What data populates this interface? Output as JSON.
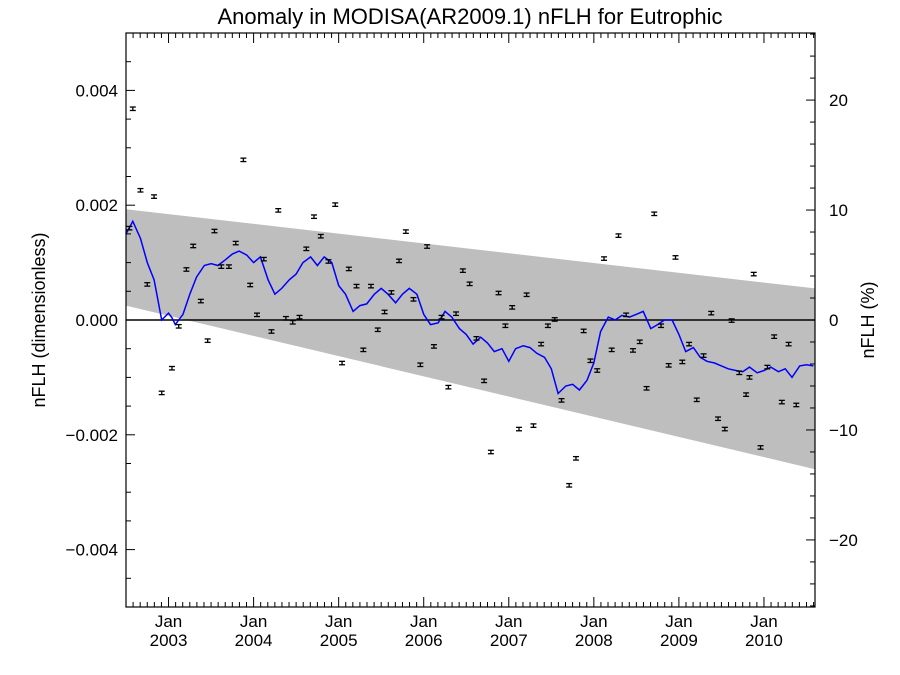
{
  "chart_data": {
    "type": "scatter",
    "title": "Anomaly in MODISA(AR2009.1) nFLH for Eutrophic",
    "ylabel": "nFLH (dimensionless)",
    "ylabel_right": "nFLH (%)",
    "xlim": [
      2002.5,
      2010.6
    ],
    "ylim": [
      -0.005,
      0.005
    ],
    "ylim_right": [
      -26.1,
      26.1
    ],
    "y_ticks": [
      {
        "value": 0.004,
        "label": "0.004"
      },
      {
        "value": 0.002,
        "label": "0.002"
      },
      {
        "value": 0.0,
        "label": "0.000"
      },
      {
        "value": -0.002,
        "label": "−0.002"
      },
      {
        "value": -0.004,
        "label": "−0.004"
      }
    ],
    "y_ticks_right": [
      {
        "value": 20,
        "label": "20"
      },
      {
        "value": 10,
        "label": "10"
      },
      {
        "value": 0,
        "label": "0"
      },
      {
        "value": -10,
        "label": "−10"
      },
      {
        "value": -20,
        "label": "−20"
      }
    ],
    "x_ticks": [
      {
        "value": 2003.0,
        "month": "Jan",
        "year": "2003"
      },
      {
        "value": 2004.0,
        "month": "Jan",
        "year": "2004"
      },
      {
        "value": 2005.0,
        "month": "Jan",
        "year": "2005"
      },
      {
        "value": 2006.0,
        "month": "Jan",
        "year": "2006"
      },
      {
        "value": 2007.0,
        "month": "Jan",
        "year": "2007"
      },
      {
        "value": 2008.0,
        "month": "Jan",
        "year": "2008"
      },
      {
        "value": 2009.0,
        "month": "Jan",
        "year": "2009"
      },
      {
        "value": 2010.0,
        "month": "Jan",
        "year": "2010"
      }
    ],
    "band": {
      "color": "#bebebe",
      "upper": [
        [
          2002.5,
          0.00193
        ],
        [
          2010.6,
          0.00055
        ]
      ],
      "lower": [
        [
          2002.5,
          0.00025
        ],
        [
          2010.6,
          -0.0026
        ]
      ]
    },
    "zero_line": 0.0,
    "monthly_anomaly": {
      "color": "#000000",
      "error": 3e-05,
      "points": [
        [
          2002.54,
          0.0016
        ],
        [
          2002.58,
          0.00368
        ],
        [
          2002.67,
          0.00226
        ],
        [
          2002.75,
          0.00062
        ],
        [
          2002.83,
          0.00215
        ],
        [
          2002.92,
          -0.00127
        ],
        [
          2003.04,
          -0.00084
        ],
        [
          2003.12,
          -0.00011
        ],
        [
          2003.21,
          0.00088
        ],
        [
          2003.29,
          0.00129
        ],
        [
          2003.38,
          0.00033
        ],
        [
          2003.46,
          -0.00036
        ],
        [
          2003.54,
          0.00155
        ],
        [
          2003.62,
          0.00093
        ],
        [
          2003.71,
          0.00093
        ],
        [
          2003.79,
          0.00134
        ],
        [
          2003.88,
          0.00279
        ],
        [
          2003.96,
          0.00061
        ],
        [
          2004.04,
          9e-05
        ],
        [
          2004.12,
          0.00106
        ],
        [
          2004.21,
          -0.0002
        ],
        [
          2004.29,
          0.00191
        ],
        [
          2004.38,
          3e-05
        ],
        [
          2004.46,
          -4e-05
        ],
        [
          2004.54,
          5e-05
        ],
        [
          2004.62,
          0.00124
        ],
        [
          2004.71,
          0.0018
        ],
        [
          2004.79,
          0.00146
        ],
        [
          2004.88,
          0.00102
        ],
        [
          2004.96,
          0.00201
        ],
        [
          2005.04,
          -0.00075
        ],
        [
          2005.12,
          0.00089
        ],
        [
          2005.21,
          0.00059
        ],
        [
          2005.29,
          -0.00052
        ],
        [
          2005.38,
          0.00059
        ],
        [
          2005.46,
          -0.00017
        ],
        [
          2005.54,
          0.00014
        ],
        [
          2005.62,
          0.00048
        ],
        [
          2005.71,
          0.00103
        ],
        [
          2005.79,
          0.00154
        ],
        [
          2005.88,
          0.00036
        ],
        [
          2005.96,
          -0.00078
        ],
        [
          2006.04,
          0.00128
        ],
        [
          2006.12,
          -0.00046
        ],
        [
          2006.21,
          5e-05
        ],
        [
          2006.29,
          -0.00117
        ],
        [
          2006.38,
          0.00011
        ],
        [
          2006.46,
          0.00086
        ],
        [
          2006.54,
          0.00063
        ],
        [
          2006.62,
          -0.00032
        ],
        [
          2006.71,
          -0.00106
        ],
        [
          2006.79,
          -0.0023
        ],
        [
          2006.88,
          0.00047
        ],
        [
          2006.96,
          -0.0001
        ],
        [
          2007.04,
          0.00022
        ],
        [
          2007.12,
          -0.0019
        ],
        [
          2007.21,
          0.00044
        ],
        [
          2007.29,
          -0.00184
        ],
        [
          2007.38,
          -0.00042
        ],
        [
          2007.46,
          -0.0001
        ],
        [
          2007.54,
          1e-05
        ],
        [
          2007.62,
          -0.0014
        ],
        [
          2007.71,
          -0.00288
        ],
        [
          2007.79,
          -0.00241
        ],
        [
          2007.88,
          -0.00019
        ],
        [
          2007.96,
          -0.00071
        ],
        [
          2008.04,
          -0.00088
        ],
        [
          2008.12,
          0.00107
        ],
        [
          2008.21,
          -0.00052
        ],
        [
          2008.29,
          0.00147
        ],
        [
          2008.38,
          9e-05
        ],
        [
          2008.46,
          -0.00053
        ],
        [
          2008.54,
          -0.00038
        ],
        [
          2008.62,
          -0.00119
        ],
        [
          2008.71,
          0.00185
        ],
        [
          2008.79,
          -0.0001
        ],
        [
          2008.88,
          -0.00079
        ],
        [
          2008.96,
          0.00109
        ],
        [
          2009.04,
          -0.00073
        ],
        [
          2009.12,
          -0.00042
        ],
        [
          2009.21,
          -0.00139
        ],
        [
          2009.29,
          -0.00062
        ],
        [
          2009.38,
          0.00012
        ],
        [
          2009.46,
          -0.00172
        ],
        [
          2009.54,
          -0.0019
        ],
        [
          2009.62,
          -1e-05
        ],
        [
          2009.71,
          -0.00092
        ],
        [
          2009.79,
          -0.0013
        ],
        [
          2009.83,
          -0.001
        ],
        [
          2009.88,
          0.0008
        ],
        [
          2009.96,
          -0.00222
        ],
        [
          2010.04,
          -0.00082
        ],
        [
          2010.12,
          -0.00029
        ],
        [
          2010.21,
          -0.00143
        ],
        [
          2010.29,
          -0.00042
        ],
        [
          2010.38,
          -0.00148
        ]
      ]
    },
    "running_mean": {
      "color": "#0000ff",
      "points": [
        [
          2002.5,
          0.0015
        ],
        [
          2002.58,
          0.00172
        ],
        [
          2002.67,
          0.00142
        ],
        [
          2002.75,
          0.001
        ],
        [
          2002.83,
          0.0007
        ],
        [
          2002.92,
          0.0
        ],
        [
          2003.0,
          0.00012
        ],
        [
          2003.04,
          4e-05
        ],
        [
          2003.08,
          -8e-05
        ],
        [
          2003.17,
          0.0001
        ],
        [
          2003.25,
          0.00045
        ],
        [
          2003.33,
          0.00075
        ],
        [
          2003.42,
          0.00095
        ],
        [
          2003.5,
          0.00098
        ],
        [
          2003.58,
          0.00095
        ],
        [
          2003.67,
          0.00105
        ],
        [
          2003.75,
          0.00115
        ],
        [
          2003.83,
          0.0012
        ],
        [
          2003.92,
          0.00113
        ],
        [
          2004.0,
          0.001
        ],
        [
          2004.08,
          0.0011
        ],
        [
          2004.17,
          0.0007
        ],
        [
          2004.25,
          0.00045
        ],
        [
          2004.33,
          0.00055
        ],
        [
          2004.42,
          0.0007
        ],
        [
          2004.5,
          0.0008
        ],
        [
          2004.58,
          0.001
        ],
        [
          2004.67,
          0.0011
        ],
        [
          2004.75,
          0.00095
        ],
        [
          2004.83,
          0.0011
        ],
        [
          2004.92,
          0.001
        ],
        [
          2005.0,
          0.0006
        ],
        [
          2005.08,
          0.00045
        ],
        [
          2005.17,
          0.00015
        ],
        [
          2005.25,
          0.00025
        ],
        [
          2005.33,
          0.00028
        ],
        [
          2005.42,
          0.00045
        ],
        [
          2005.5,
          0.00055
        ],
        [
          2005.58,
          0.00045
        ],
        [
          2005.67,
          0.0003
        ],
        [
          2005.75,
          0.00045
        ],
        [
          2005.83,
          0.00055
        ],
        [
          2005.92,
          0.00045
        ],
        [
          2006.0,
          0.0001
        ],
        [
          2006.08,
          -8e-05
        ],
        [
          2006.17,
          -5e-05
        ],
        [
          2006.25,
          0.00015
        ],
        [
          2006.33,
          5e-05
        ],
        [
          2006.42,
          -0.00015
        ],
        [
          2006.5,
          -0.00025
        ],
        [
          2006.58,
          -0.00042
        ],
        [
          2006.67,
          -0.0003
        ],
        [
          2006.75,
          -0.0004
        ],
        [
          2006.83,
          -0.00055
        ],
        [
          2006.92,
          -0.0005
        ],
        [
          2007.0,
          -0.00072
        ],
        [
          2007.08,
          -0.0005
        ],
        [
          2007.17,
          -0.00045
        ],
        [
          2007.25,
          -0.00048
        ],
        [
          2007.33,
          -0.00058
        ],
        [
          2007.42,
          -0.00065
        ],
        [
          2007.5,
          -0.00085
        ],
        [
          2007.58,
          -0.00128
        ],
        [
          2007.67,
          -0.00115
        ],
        [
          2007.75,
          -0.00112
        ],
        [
          2007.83,
          -0.00122
        ],
        [
          2007.92,
          -0.00105
        ],
        [
          2008.0,
          -0.00075
        ],
        [
          2008.08,
          -0.0002
        ],
        [
          2008.17,
          5e-05
        ],
        [
          2008.25,
          0.0
        ],
        [
          2008.33,
          8e-05
        ],
        [
          2008.42,
          5e-05
        ],
        [
          2008.5,
          0.0001
        ],
        [
          2008.58,
          0.00015
        ],
        [
          2008.67,
          -0.00015
        ],
        [
          2008.75,
          -8e-05
        ],
        [
          2008.83,
          0.0
        ],
        [
          2008.92,
          0.0
        ],
        [
          2009.0,
          -0.00025
        ],
        [
          2009.08,
          -0.00055
        ],
        [
          2009.17,
          -0.00048
        ],
        [
          2009.25,
          -0.00065
        ],
        [
          2009.33,
          -0.00072
        ],
        [
          2009.42,
          -0.00075
        ],
        [
          2009.5,
          -0.0008
        ],
        [
          2009.58,
          -0.00085
        ],
        [
          2009.67,
          -0.00088
        ],
        [
          2009.75,
          -0.0009
        ],
        [
          2009.83,
          -0.00082
        ],
        [
          2009.92,
          -0.00092
        ],
        [
          2010.0,
          -0.00088
        ],
        [
          2010.08,
          -0.00082
        ],
        [
          2010.17,
          -0.0009
        ],
        [
          2010.25,
          -0.00085
        ],
        [
          2010.33,
          -0.001
        ],
        [
          2010.42,
          -0.0008
        ],
        [
          2010.5,
          -0.00078
        ],
        [
          2010.58,
          -0.0008
        ]
      ]
    }
  }
}
